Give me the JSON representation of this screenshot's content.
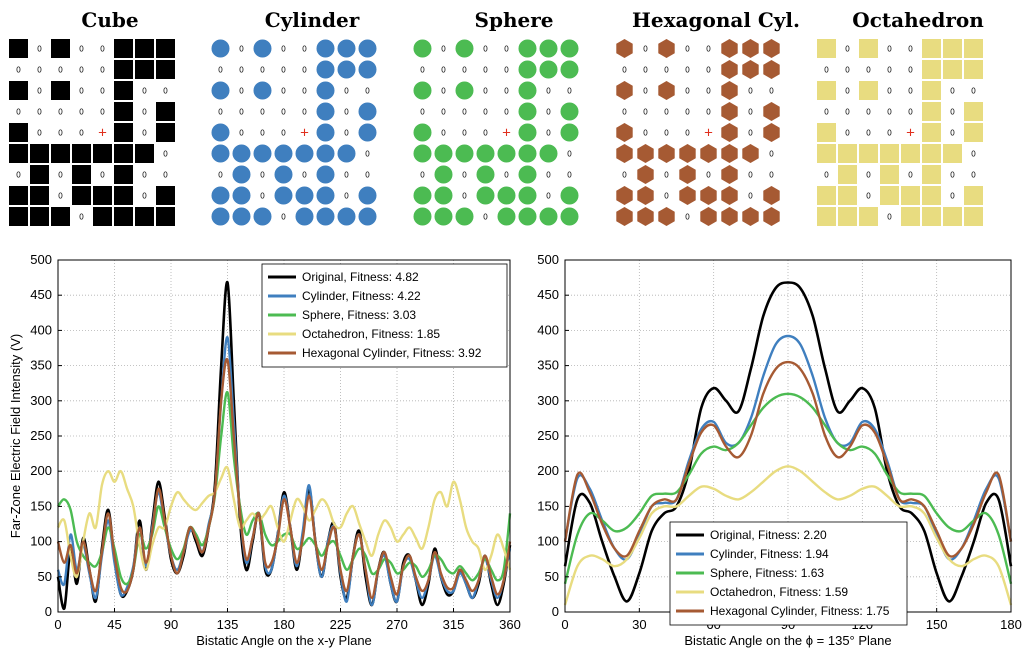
{
  "grids": {
    "titles": [
      "Cube",
      "Cylinder",
      "Sphere",
      "Hexagonal Cyl.",
      "Octahedron"
    ],
    "shapes": [
      "square",
      "circle",
      "circle",
      "hexagon",
      "square"
    ],
    "colors": [
      "#000000",
      "#3f7fbf",
      "#4cbb52",
      "#a65a33",
      "#e8dc80"
    ],
    "zero_label": "0",
    "center_mark": "+",
    "center_color": "#e0301e",
    "pattern": [
      "10100111",
      "00000111",
      "10100100",
      "00000101",
      "1000+101",
      "11111110",
      "01010100",
      "11011101",
      "11101111"
    ]
  },
  "chart_data": [
    {
      "type": "line",
      "xlabel": "Bistatic Angle on the x-y Plane",
      "ylabel": "Far-Zone Electric Field Intensity (V)",
      "xlim": [
        0,
        360
      ],
      "ylim": [
        0,
        500
      ],
      "xticks": [
        "0",
        "45",
        "90",
        "135",
        "180",
        "225",
        "270",
        "315",
        "360"
      ],
      "yticks": [
        "0",
        "50",
        "100",
        "150",
        "200",
        "250",
        "300",
        "350",
        "400",
        "450",
        "500"
      ],
      "grid": true,
      "legend_position": "top-right",
      "x": [
        0,
        5,
        10,
        15,
        20,
        25,
        30,
        35,
        40,
        45,
        50,
        55,
        60,
        65,
        70,
        75,
        80,
        85,
        90,
        95,
        100,
        105,
        110,
        115,
        120,
        125,
        130,
        135,
        140,
        145,
        150,
        155,
        160,
        165,
        170,
        175,
        180,
        185,
        190,
        195,
        200,
        205,
        210,
        215,
        220,
        225,
        230,
        235,
        240,
        245,
        250,
        255,
        260,
        265,
        270,
        275,
        280,
        285,
        290,
        295,
        300,
        305,
        310,
        315,
        320,
        325,
        330,
        335,
        340,
        345,
        350,
        355,
        360
      ],
      "series": [
        {
          "name": "Original, Fitness: 4.82",
          "color": "#000000",
          "values": [
            50,
            5,
            90,
            40,
            105,
            60,
            15,
            90,
            145,
            75,
            25,
            30,
            60,
            130,
            60,
            125,
            185,
            135,
            75,
            55,
            80,
            120,
            100,
            80,
            120,
            180,
            350,
            468,
            300,
            130,
            60,
            100,
            140,
            60,
            60,
            110,
            170,
            120,
            60,
            110,
            175,
            100,
            50,
            100,
            125,
            50,
            20,
            80,
            115,
            50,
            10,
            60,
            85,
            40,
            15,
            70,
            80,
            45,
            10,
            40,
            90,
            50,
            25,
            30,
            60,
            40,
            20,
            40,
            80,
            40,
            10,
            40,
            95
          ]
        },
        {
          "name": "Cylinder, Fitness: 4.22",
          "color": "#3f7fbf",
          "values": [
            60,
            40,
            110,
            60,
            95,
            55,
            20,
            80,
            130,
            70,
            25,
            35,
            65,
            120,
            65,
            120,
            170,
            125,
            80,
            60,
            85,
            115,
            110,
            85,
            125,
            170,
            300,
            390,
            270,
            140,
            70,
            105,
            140,
            65,
            60,
            110,
            165,
            120,
            65,
            115,
            180,
            100,
            50,
            100,
            120,
            55,
            15,
            80,
            110,
            60,
            10,
            60,
            80,
            40,
            15,
            65,
            75,
            45,
            20,
            45,
            80,
            50,
            30,
            30,
            55,
            40,
            20,
            45,
            75,
            45,
            20,
            45,
            90
          ]
        },
        {
          "name": "Sphere, Fitness: 3.03",
          "color": "#4cbb52",
          "values": [
            150,
            160,
            145,
            100,
            80,
            70,
            65,
            85,
            120,
            90,
            50,
            40,
            60,
            110,
            90,
            110,
            150,
            120,
            90,
            75,
            90,
            120,
            110,
            95,
            120,
            165,
            250,
            312,
            220,
            150,
            110,
            130,
            140,
            110,
            95,
            100,
            110,
            110,
            90,
            95,
            105,
            95,
            80,
            95,
            100,
            80,
            60,
            75,
            90,
            80,
            55,
            60,
            75,
            70,
            55,
            60,
            70,
            65,
            50,
            60,
            80,
            75,
            60,
            55,
            65,
            55,
            45,
            55,
            75,
            60,
            45,
            60,
            140
          ]
        },
        {
          "name": "Octahedron, Fitness: 1.85",
          "color": "#e8dc80",
          "values": [
            120,
            130,
            80,
            50,
            100,
            140,
            120,
            180,
            200,
            185,
            200,
            175,
            150,
            95,
            60,
            95,
            120,
            120,
            150,
            170,
            160,
            150,
            145,
            155,
            165,
            170,
            190,
            205,
            160,
            120,
            130,
            140,
            130,
            140,
            150,
            120,
            100,
            130,
            160,
            150,
            130,
            145,
            160,
            150,
            125,
            120,
            140,
            150,
            125,
            100,
            80,
            110,
            130,
            120,
            100,
            110,
            120,
            105,
            90,
            120,
            160,
            170,
            150,
            185,
            160,
            120,
            100,
            90,
            60,
            80,
            110,
            90,
            60
          ]
        },
        {
          "name": "Hexagonal Cylinder, Fitness: 3.92",
          "color": "#a65a33",
          "values": [
            100,
            70,
            95,
            55,
            100,
            60,
            30,
            85,
            140,
            80,
            35,
            30,
            60,
            120,
            70,
            115,
            175,
            130,
            80,
            55,
            85,
            120,
            105,
            85,
            120,
            170,
            300,
            358,
            250,
            140,
            75,
            105,
            140,
            70,
            70,
            105,
            160,
            120,
            70,
            105,
            165,
            100,
            60,
            95,
            120,
            60,
            30,
            80,
            110,
            60,
            20,
            60,
            85,
            50,
            25,
            65,
            80,
            50,
            30,
            45,
            85,
            55,
            35,
            35,
            60,
            45,
            30,
            45,
            80,
            50,
            25,
            45,
            100
          ]
        }
      ]
    },
    {
      "type": "line",
      "xlabel": "Bistatic Angle on the ϕ = 135° Plane",
      "ylabel": "",
      "xlim": [
        0,
        180
      ],
      "ylim": [
        0,
        500
      ],
      "xticks": [
        "0",
        "30",
        "60",
        "90",
        "120",
        "150",
        "180"
      ],
      "yticks": [
        "0",
        "50",
        "100",
        "150",
        "200",
        "250",
        "300",
        "350",
        "400",
        "450",
        "500"
      ],
      "grid": true,
      "legend_position": "bottom-center",
      "x": [
        0,
        5,
        10,
        15,
        20,
        25,
        30,
        35,
        40,
        45,
        50,
        55,
        60,
        65,
        70,
        75,
        80,
        85,
        90,
        95,
        100,
        105,
        110,
        115,
        120,
        125,
        130,
        135,
        140,
        145,
        150,
        155,
        160,
        165,
        170,
        175,
        180
      ],
      "series": [
        {
          "name": "Original, Fitness: 2.20",
          "color": "#000000",
          "values": [
            65,
            160,
            155,
            100,
            50,
            15,
            55,
            115,
            140,
            150,
            200,
            290,
            318,
            300,
            285,
            345,
            420,
            460,
            468,
            460,
            420,
            345,
            285,
            300,
            318,
            290,
            200,
            150,
            140,
            115,
            55,
            15,
            50,
            100,
            155,
            160,
            65
          ]
        },
        {
          "name": "Cylinder, Fitness: 1.94",
          "color": "#3f7fbf",
          "values": [
            100,
            190,
            175,
            130,
            90,
            75,
            110,
            150,
            155,
            160,
            215,
            260,
            270,
            240,
            240,
            275,
            335,
            380,
            392,
            380,
            335,
            275,
            240,
            240,
            270,
            260,
            215,
            160,
            155,
            150,
            110,
            75,
            90,
            130,
            175,
            190,
            100
          ]
        },
        {
          "name": "Sphere, Fitness: 1.63",
          "color": "#4cbb52",
          "values": [
            40,
            110,
            140,
            130,
            115,
            120,
            140,
            165,
            168,
            170,
            195,
            225,
            235,
            230,
            240,
            265,
            290,
            305,
            310,
            305,
            290,
            265,
            240,
            230,
            235,
            225,
            195,
            170,
            168,
            165,
            140,
            120,
            115,
            130,
            140,
            110,
            40
          ]
        },
        {
          "name": "Octahedron, Fitness: 1.59",
          "color": "#e8dc80",
          "values": [
            10,
            65,
            80,
            75,
            65,
            75,
            105,
            140,
            150,
            150,
            165,
            178,
            175,
            165,
            160,
            170,
            185,
            200,
            207,
            200,
            185,
            170,
            160,
            165,
            175,
            178,
            165,
            150,
            150,
            140,
            105,
            75,
            65,
            75,
            80,
            65,
            10
          ]
        },
        {
          "name": "Hexagonal Cylinder, Fitness: 1.75",
          "color": "#a65a33",
          "values": [
            100,
            195,
            170,
            125,
            90,
            80,
            115,
            150,
            160,
            160,
            210,
            255,
            265,
            235,
            220,
            250,
            310,
            345,
            355,
            345,
            310,
            250,
            220,
            235,
            265,
            255,
            210,
            160,
            160,
            150,
            115,
            80,
            90,
            125,
            170,
            195,
            100
          ]
        }
      ]
    }
  ]
}
